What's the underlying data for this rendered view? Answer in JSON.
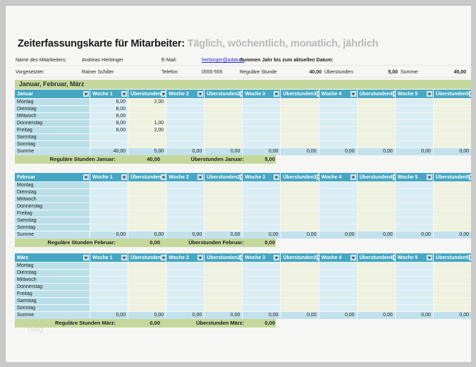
{
  "header": {
    "title": "Zeiterfassungskarte für Mitarbeiter:",
    "subtitle": " Täglich, wöchentlich, monatlich, jährlich",
    "name_label": "Name des Mitarbeiters:",
    "name_value": "Andreas Herbinger",
    "email_label": "E-Mail:",
    "email_value": "herbinger@adatum",
    "ytd_label": "Summen Jahr bis zum aktuellen Datum:",
    "supervisor_label": "Vorgesetzter:",
    "supervisor_value": "Rainer Schiller",
    "phone_label": "Telefon:",
    "phone_value": "0555-555",
    "regular_label": "Reguläre Stunde",
    "regular_value": "40,00",
    "overtime_label": "Überstunden:",
    "overtime_value": "5,00",
    "total_label": "Summe:",
    "total_value": "45,00"
  },
  "section_title": "Januar, Februar, März",
  "columns": [
    "Woche 1",
    "Überstunden",
    "Woche 2",
    "Überstunden2",
    "Woche 3",
    "Überstunden3",
    "Woche 4",
    "Überstunden4",
    "Woche 5",
    "Überstunden5"
  ],
  "day_labels": [
    "Montag",
    "Dienstag",
    "Mittwoch",
    "Donnerstag",
    "Freitag",
    "Samstag",
    "Sonntag"
  ],
  "summe_label": "Summe",
  "months": [
    {
      "name": "Januar",
      "rows": [
        [
          "8,00",
          "2,00",
          "",
          "",
          "",
          "",
          "",
          "",
          "",
          ""
        ],
        [
          "8,00",
          "",
          "",
          "",
          "",
          "",
          "",
          "",
          "",
          ""
        ],
        [
          "8,00",
          "",
          "",
          "",
          "",
          "",
          "",
          "",
          "",
          ""
        ],
        [
          "8,00",
          "1,00",
          "",
          "",
          "",
          "",
          "",
          "",
          "",
          ""
        ],
        [
          "8,00",
          "2,00",
          "",
          "",
          "",
          "",
          "",
          "",
          "",
          ""
        ],
        [
          "",
          "",
          "",
          "",
          "",
          "",
          "",
          "",
          "",
          ""
        ],
        [
          "",
          "",
          "",
          "",
          "",
          "",
          "",
          "",
          "",
          ""
        ]
      ],
      "summe": [
        "40,00",
        "5,00",
        "0,00",
        "0,00",
        "0,00",
        "0,00",
        "0,00",
        "0,00",
        "0,00",
        "0,00"
      ],
      "footer": {
        "regular_label": "Reguläre Stunden Januar:",
        "regular_value": "40,00",
        "overtime_label": "Überstunden Januar:",
        "overtime_value": "5,00"
      }
    },
    {
      "name": "Februar",
      "rows": [
        [
          "",
          "",
          "",
          "",
          "",
          "",
          "",
          "",
          "",
          ""
        ],
        [
          "",
          "",
          "",
          "",
          "",
          "",
          "",
          "",
          "",
          ""
        ],
        [
          "",
          "",
          "",
          "",
          "",
          "",
          "",
          "",
          "",
          ""
        ],
        [
          "",
          "",
          "",
          "",
          "",
          "",
          "",
          "",
          "",
          ""
        ],
        [
          "",
          "",
          "",
          "",
          "",
          "",
          "",
          "",
          "",
          ""
        ],
        [
          "",
          "",
          "",
          "",
          "",
          "",
          "",
          "",
          "",
          ""
        ],
        [
          "",
          "",
          "",
          "",
          "",
          "",
          "",
          "",
          "",
          ""
        ]
      ],
      "summe": [
        "0,00",
        "0,00",
        "0,00",
        "0,00",
        "0,00",
        "0,00",
        "0,00",
        "0,00",
        "0,00",
        "0,00"
      ],
      "footer": {
        "regular_label": "Reguläre Stunden Februar:",
        "regular_value": "0,00",
        "overtime_label": "Überstunden Februar:",
        "overtime_value": "0,00"
      }
    },
    {
      "name": "März",
      "rows": [
        [
          "",
          "",
          "",
          "",
          "",
          "",
          "",
          "",
          "",
          ""
        ],
        [
          "",
          "",
          "",
          "",
          "",
          "",
          "",
          "",
          "",
          ""
        ],
        [
          "",
          "",
          "",
          "",
          "",
          "",
          "",
          "",
          "",
          ""
        ],
        [
          "",
          "",
          "",
          "",
          "",
          "",
          "",
          "",
          "",
          ""
        ],
        [
          "",
          "",
          "",
          "",
          "",
          "",
          "",
          "",
          "",
          ""
        ],
        [
          "",
          "",
          "",
          "",
          "",
          "",
          "",
          "",
          "",
          ""
        ],
        [
          "",
          "",
          "",
          "",
          "",
          "",
          "",
          "",
          "",
          ""
        ]
      ],
      "summe": [
        "0,00",
        "0,00",
        "0,00",
        "0,00",
        "0,00",
        "0,00",
        "0,00",
        "0,00",
        "0,00",
        "0,00"
      ],
      "footer": {
        "regular_label": "Reguläre Stunden März:",
        "regular_value": "0,00",
        "overtime_label": "Überstunden März:",
        "overtime_value": "0,00"
      }
    }
  ],
  "layout_tops": {
    "tables": [
      119,
      237,
      351
    ],
    "footers": [
      212,
      330,
      444
    ]
  },
  "watermark": "blog",
  "colors": {
    "header_teal": "#45a7c3",
    "band_green": "#c5d89c",
    "day_blue": "#b9dfe9",
    "week_blue": "#d9edf4",
    "overtime_cream": "#eef2df",
    "summe_blue": "#c2e1ec",
    "link_blue": "#2a2ac9"
  }
}
